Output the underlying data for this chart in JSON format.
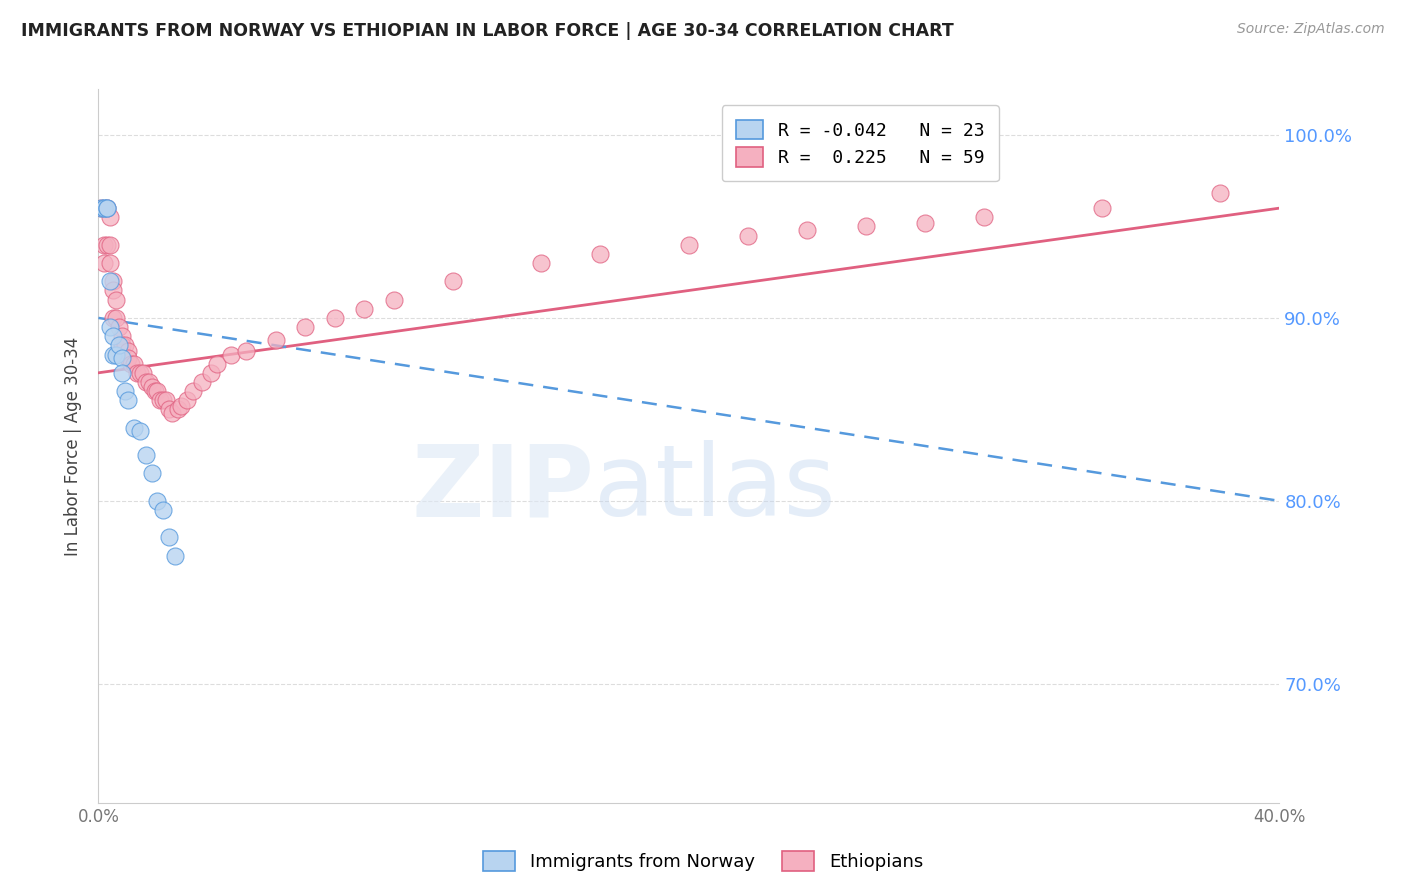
{
  "title": "IMMIGRANTS FROM NORWAY VS ETHIOPIAN IN LABOR FORCE | AGE 30-34 CORRELATION CHART",
  "source": "Source: ZipAtlas.com",
  "ylabel": "In Labor Force | Age 30-34",
  "xlim": [
    0.0,
    0.4
  ],
  "ylim": [
    0.635,
    1.025
  ],
  "yticks": [
    0.7,
    0.8,
    0.9,
    1.0
  ],
  "ytick_labels": [
    "70.0%",
    "80.0%",
    "90.0%",
    "100.0%"
  ],
  "xticks": [
    0.0,
    0.1,
    0.2,
    0.3,
    0.4
  ],
  "xtick_labels": [
    "0.0%",
    "",
    "",
    "",
    "40.0%"
  ],
  "norway_R": -0.042,
  "norway_N": 23,
  "ethiopia_R": 0.225,
  "ethiopia_N": 59,
  "norway_color": "#b8d4f0",
  "ethiopia_color": "#f5b0c0",
  "norway_line_color": "#5599dd",
  "ethiopia_line_color": "#e06080",
  "grid_color": "#dddddd",
  "right_tick_color": "#5599ff",
  "norway_line_y0": 0.9,
  "norway_line_y1": 0.8,
  "ethiopia_line_y0": 0.87,
  "ethiopia_line_y1": 0.96,
  "norway_x": [
    0.001,
    0.002,
    0.002,
    0.003,
    0.003,
    0.004,
    0.004,
    0.005,
    0.005,
    0.006,
    0.007,
    0.008,
    0.008,
    0.009,
    0.01,
    0.012,
    0.014,
    0.016,
    0.018,
    0.02,
    0.022,
    0.024,
    0.026
  ],
  "norway_y": [
    0.96,
    0.96,
    0.96,
    0.96,
    0.96,
    0.92,
    0.895,
    0.89,
    0.88,
    0.88,
    0.885,
    0.878,
    0.87,
    0.86,
    0.855,
    0.84,
    0.838,
    0.825,
    0.815,
    0.8,
    0.795,
    0.78,
    0.77
  ],
  "ethiopia_x": [
    0.001,
    0.002,
    0.002,
    0.003,
    0.003,
    0.004,
    0.004,
    0.004,
    0.005,
    0.005,
    0.005,
    0.006,
    0.006,
    0.007,
    0.008,
    0.008,
    0.009,
    0.01,
    0.01,
    0.011,
    0.012,
    0.013,
    0.014,
    0.015,
    0.016,
    0.017,
    0.018,
    0.019,
    0.02,
    0.021,
    0.022,
    0.023,
    0.024,
    0.025,
    0.027,
    0.028,
    0.03,
    0.032,
    0.035,
    0.038,
    0.04,
    0.045,
    0.05,
    0.06,
    0.07,
    0.08,
    0.09,
    0.1,
    0.12,
    0.15,
    0.17,
    0.2,
    0.22,
    0.24,
    0.26,
    0.28,
    0.3,
    0.34,
    0.38
  ],
  "ethiopia_y": [
    0.96,
    0.94,
    0.93,
    0.96,
    0.94,
    0.955,
    0.94,
    0.93,
    0.92,
    0.915,
    0.9,
    0.91,
    0.9,
    0.895,
    0.89,
    0.885,
    0.885,
    0.882,
    0.878,
    0.875,
    0.875,
    0.87,
    0.87,
    0.87,
    0.865,
    0.865,
    0.862,
    0.86,
    0.86,
    0.855,
    0.855,
    0.855,
    0.85,
    0.848,
    0.85,
    0.852,
    0.855,
    0.86,
    0.865,
    0.87,
    0.875,
    0.88,
    0.882,
    0.888,
    0.895,
    0.9,
    0.905,
    0.91,
    0.92,
    0.93,
    0.935,
    0.94,
    0.945,
    0.948,
    0.95,
    0.952,
    0.955,
    0.96,
    0.968
  ]
}
